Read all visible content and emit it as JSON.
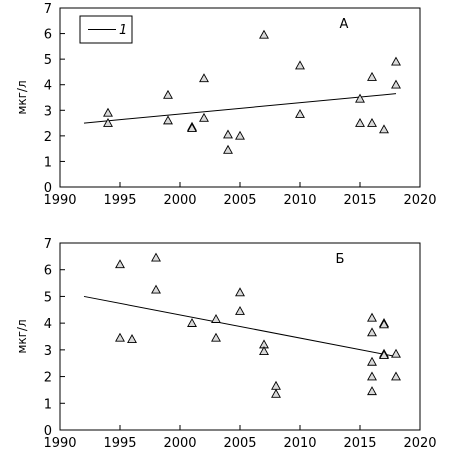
{
  "chart_data": [
    {
      "type": "scatter",
      "panel_label": "А",
      "ylabel": "мкг/л",
      "xlim": [
        1990,
        2020
      ],
      "ylim": [
        0,
        7
      ],
      "xticks": [
        1990,
        1995,
        2000,
        2005,
        2010,
        2015,
        2020
      ],
      "yticks": [
        0,
        1,
        2,
        3,
        4,
        5,
        6,
        7
      ],
      "grid": false,
      "legend": {
        "placement": "top-left",
        "entries": [
          "1"
        ]
      },
      "series": [
        {
          "marker": "triangle",
          "points": [
            [
              1994,
              2.9
            ],
            [
              1994,
              2.5
            ],
            [
              1999,
              3.6
            ],
            [
              1999,
              2.6
            ],
            [
              2001,
              2.35
            ],
            [
              2001,
              2.3
            ],
            [
              2002,
              4.25
            ],
            [
              2002,
              2.7
            ],
            [
              2004,
              2.05
            ],
            [
              2004,
              1.45
            ],
            [
              2005,
              2.0
            ],
            [
              2007,
              5.95
            ],
            [
              2010,
              4.75
            ],
            [
              2010,
              2.85
            ],
            [
              2015,
              3.45
            ],
            [
              2015,
              2.5
            ],
            [
              2016,
              4.3
            ],
            [
              2016,
              2.5
            ],
            [
              2017,
              2.25
            ],
            [
              2018,
              4.9
            ],
            [
              2018,
              4.0
            ]
          ]
        }
      ],
      "trend": [
        [
          1992,
          2.5
        ],
        [
          2018,
          3.65
        ]
      ]
    },
    {
      "type": "scatter",
      "panel_label": "Б",
      "ylabel": "мкг/л",
      "xlim": [
        1990,
        2020
      ],
      "ylim": [
        0,
        7
      ],
      "xticks": [
        1990,
        1995,
        2000,
        2005,
        2010,
        2015,
        2020
      ],
      "yticks": [
        0,
        1,
        2,
        3,
        4,
        5,
        6,
        7
      ],
      "grid": false,
      "series": [
        {
          "marker": "triangle",
          "points": [
            [
              1995,
              6.2
            ],
            [
              1995,
              3.45
            ],
            [
              1996,
              3.4
            ],
            [
              1998,
              6.45
            ],
            [
              1998,
              5.25
            ],
            [
              2001,
              4.0
            ],
            [
              2003,
              4.15
            ],
            [
              2003,
              3.45
            ],
            [
              2005,
              5.15
            ],
            [
              2005,
              4.45
            ],
            [
              2007,
              3.2
            ],
            [
              2007,
              2.95
            ],
            [
              2008,
              1.65
            ],
            [
              2008,
              1.35
            ],
            [
              2016,
              4.2
            ],
            [
              2016,
              3.65
            ],
            [
              2016,
              2.55
            ],
            [
              2016,
              2.0
            ],
            [
              2016,
              1.45
            ],
            [
              2017,
              4.0
            ],
            [
              2017,
              3.95
            ],
            [
              2017,
              2.85
            ],
            [
              2017,
              2.8
            ],
            [
              2018,
              2.85
            ],
            [
              2018,
              2.0
            ]
          ]
        }
      ],
      "trend": [
        [
          1992,
          5.0
        ],
        [
          2018,
          2.75
        ]
      ]
    }
  ]
}
